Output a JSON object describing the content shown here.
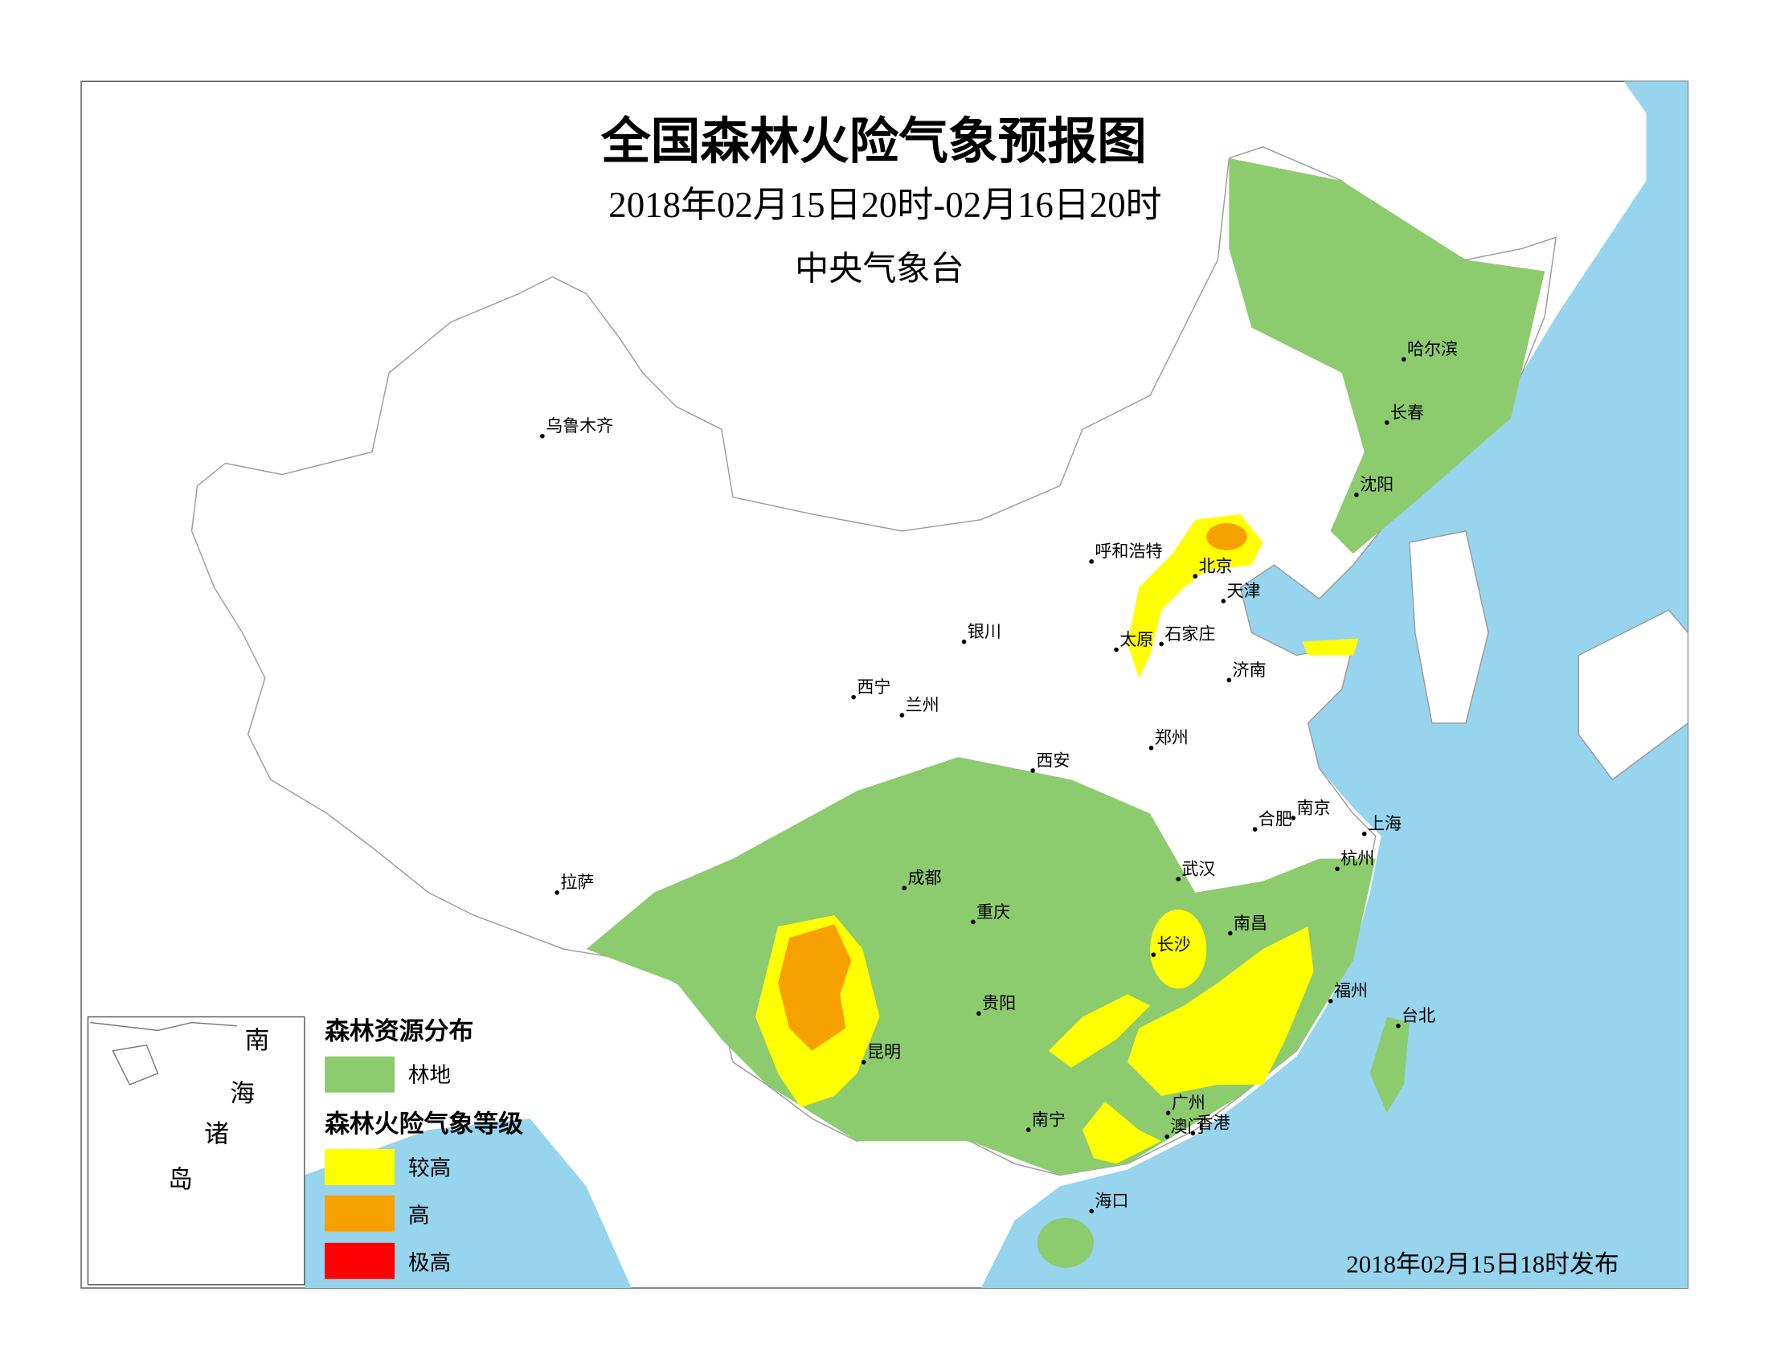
{
  "title": "全国森林火险气象预报图",
  "subtitle": "2018年02月15日20时-02月16日20时",
  "issuer": "中央气象台",
  "cities": [
    "哈尔滨",
    "长春",
    "沈阳",
    "乌鲁木齐",
    "呼和浩特",
    "北京",
    "天津",
    "石家庄",
    "太原",
    "银川",
    "济南",
    "西宁",
    "兰州",
    "郑州",
    "西安",
    "合肥",
    "南京",
    "上海",
    "杭州",
    "武汉",
    "拉萨",
    "成都",
    "重庆",
    "南昌",
    "长沙",
    "福州",
    "台北",
    "贵阳",
    "昆明",
    "广州",
    "南宁",
    "澳门",
    "香港",
    "海口"
  ],
  "legend": {
    "forest_title": "森林资源分布",
    "forest_items": [
      {
        "label": "林地",
        "color": "#8dcb6f"
      }
    ],
    "fire_title": "森林火险气象等级",
    "fire_items": [
      {
        "label": "较高",
        "color": "#ffff00"
      },
      {
        "label": "高",
        "color": "#f7a100"
      },
      {
        "label": "极高",
        "color": "#ff0000"
      }
    ]
  },
  "inset_labels": [
    "南",
    "海",
    "诸",
    "岛"
  ],
  "release": "2018年02月15日18时发布"
}
